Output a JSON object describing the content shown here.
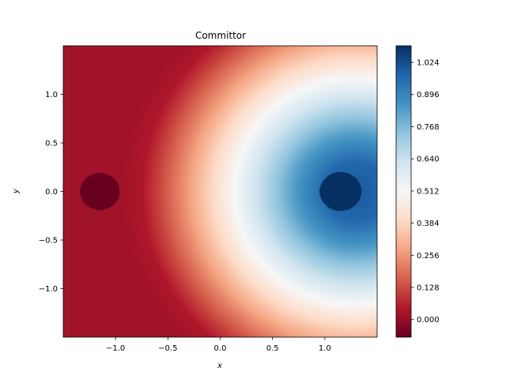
{
  "chart_data": {
    "type": "heatmap",
    "title": "Committor",
    "xlabel": "x",
    "ylabel": "y",
    "xlim": [
      -1.5,
      1.5
    ],
    "ylim": [
      -1.5,
      1.5
    ],
    "xticks": [
      -1.0,
      -0.5,
      0.0,
      0.5,
      1.0
    ],
    "xtick_labels": [
      "−1.0",
      "−0.5",
      "0.0",
      "0.5",
      "1.0"
    ],
    "yticks": [
      -1.0,
      -0.5,
      0.0,
      0.5,
      1.0
    ],
    "ytick_labels": [
      "−1.0",
      "−0.5",
      "0.0",
      "0.5",
      "1.0"
    ],
    "colormap": "RdBu",
    "colorbar": {
      "range": [
        -0.07,
        1.09
      ],
      "ticks": [
        0.0,
        0.128,
        0.256,
        0.384,
        0.512,
        0.64,
        0.768,
        0.896,
        1.024
      ],
      "tick_labels": [
        "0.000",
        "0.128",
        "0.256",
        "0.384",
        "0.512",
        "0.640",
        "0.768",
        "0.896",
        "1.024"
      ]
    },
    "field": {
      "description_values": "committor-like field increasing from left (~0) to right (~1), radial around right well",
      "left_well": {
        "center": [
          -1.15,
          0.0
        ],
        "radius": 0.19,
        "value": -0.07
      },
      "right_well": {
        "center": [
          1.15,
          0.0
        ],
        "radius": 0.2,
        "value": 1.09
      },
      "contour_center": [
        1.3,
        0.0
      ],
      "profile": [
        {
          "r": 0.0,
          "value": 1.0
        },
        {
          "r": 0.3,
          "value": 0.97
        },
        {
          "r": 0.6,
          "value": 0.83
        },
        {
          "r": 0.9,
          "value": 0.66
        },
        {
          "r": 1.15,
          "value": 0.52
        },
        {
          "r": 1.4,
          "value": 0.38
        },
        {
          "r": 1.65,
          "value": 0.24
        },
        {
          "r": 1.9,
          "value": 0.11
        },
        {
          "r": 2.05,
          "value": 0.04
        },
        {
          "r": 2.25,
          "value": 0.02
        },
        {
          "r": 3.0,
          "value": 0.02
        }
      ]
    },
    "grid": false
  }
}
